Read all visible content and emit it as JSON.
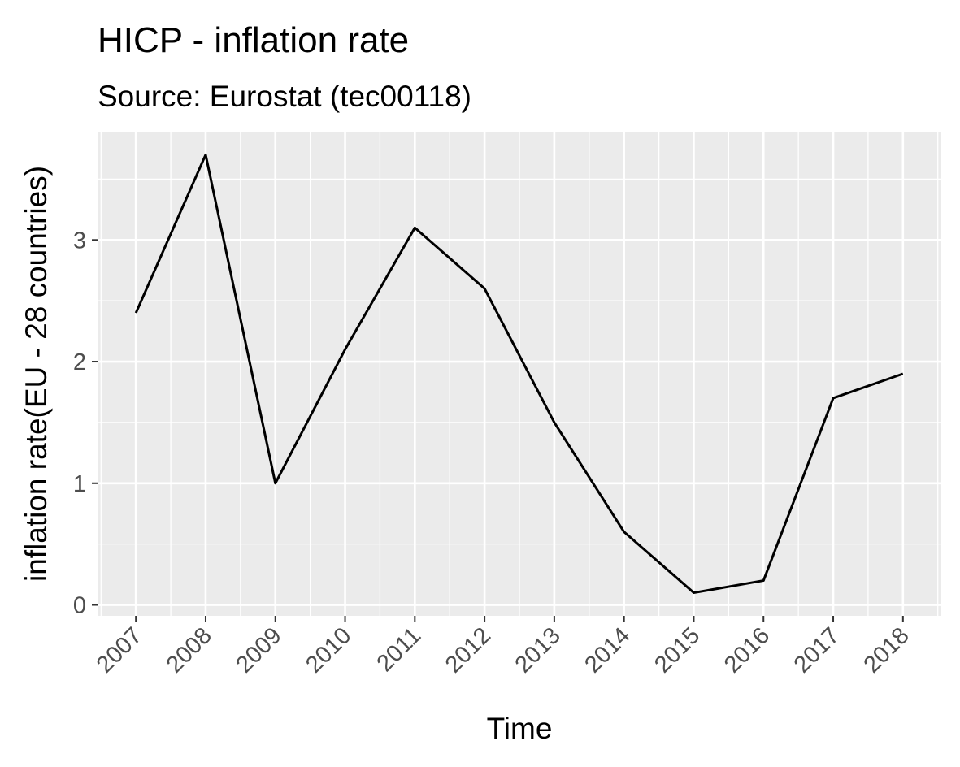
{
  "chart_data": {
    "type": "line",
    "title": "HICP - inflation rate",
    "subtitle": "Source: Eurostat (tec00118)",
    "xlabel": "Time",
    "ylabel": "inflation rate(EU - 28 countries)",
    "x": [
      "2007",
      "2008",
      "2009",
      "2010",
      "2011",
      "2012",
      "2013",
      "2014",
      "2015",
      "2016",
      "2017",
      "2018"
    ],
    "series": [
      {
        "values": [
          2.4,
          3.7,
          1.0,
          2.1,
          3.1,
          2.6,
          1.5,
          0.6,
          0.1,
          0.2,
          1.7,
          1.9
        ]
      }
    ],
    "ylim": [
      -0.09,
      3.89
    ],
    "y_ticks": [
      "0",
      "1",
      "2",
      "3"
    ],
    "grid": true,
    "legend": "none",
    "colors": {
      "panel_background": "#ebebeb",
      "grid": "#ffffff",
      "line": "#000000",
      "tick_text": "#4d4d4d",
      "tick_mark": "#333333"
    }
  }
}
